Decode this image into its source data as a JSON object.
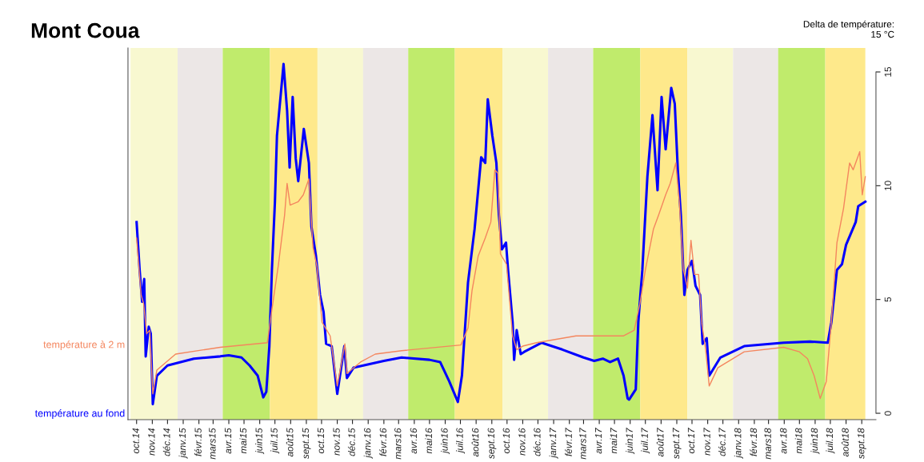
{
  "chart_data": {
    "type": "line",
    "title": "Mont Coua",
    "annotations": [
      "Delta de température:\n15 °C"
    ],
    "series": [
      {
        "name": "température à 2 m",
        "color": "#f4865e",
        "x": [
          "2014-10-01",
          "2014-10-10",
          "2014-10-15",
          "2014-10-21",
          "2014-10-27",
          "2014-11-02",
          "2014-11-10",
          "2014-12-17",
          "2015-03-15",
          "2015-06-16",
          "2015-06-25",
          "2015-07-08",
          "2015-07-20",
          "2015-07-25",
          "2015-07-31",
          "2015-08-16",
          "2015-08-26",
          "2015-09-06",
          "2015-09-14",
          "2015-09-22",
          "2015-10-02",
          "2015-10-18",
          "2015-11-01",
          "2015-11-16",
          "2015-11-20",
          "2015-12-17",
          "2016-01-15",
          "2016-03-07",
          "2016-07-02",
          "2016-07-16",
          "2016-07-24",
          "2016-08-05",
          "2016-08-19",
          "2016-08-30",
          "2016-09-07",
          "2016-09-13",
          "2016-09-18",
          "2016-09-30",
          "2016-10-12",
          "2016-10-20",
          "2016-11-01",
          "2016-11-28",
          "2017-02-14",
          "2017-05-19",
          "2017-06-09",
          "2017-06-20",
          "2017-07-01",
          "2017-07-17",
          "2017-07-27",
          "2017-08-10",
          "2017-08-19",
          "2017-08-30",
          "2017-09-06",
          "2017-09-14",
          "2017-09-22",
          "2017-09-29",
          "2017-10-06",
          "2017-10-14",
          "2017-10-20",
          "2017-10-28",
          "2017-11-04",
          "2017-11-21",
          "2018-01-12",
          "2018-03-31",
          "2018-05-01",
          "2018-05-17",
          "2018-05-30",
          "2018-06-11",
          "2018-06-23",
          "2018-07-03",
          "2018-07-14",
          "2018-07-27",
          "2018-08-08",
          "2018-08-15",
          "2018-08-28",
          "2018-09-02",
          "2018-09-08"
        ],
        "values": [
          7.7,
          5.2,
          4.8,
          3.5,
          3.65,
          0.85,
          1.9,
          2.6,
          2.9,
          3.1,
          4.55,
          6.55,
          8.7,
          10.1,
          9.15,
          9.3,
          9.6,
          10.3,
          7.3,
          6.45,
          4.0,
          3.4,
          1.2,
          3.05,
          1.75,
          2.25,
          2.6,
          2.75,
          3.0,
          3.75,
          5.4,
          6.9,
          7.7,
          8.4,
          10.7,
          10.55,
          7.0,
          6.55,
          3.4,
          2.8,
          2.95,
          3.1,
          3.4,
          3.4,
          3.65,
          4.8,
          6.3,
          8.1,
          8.7,
          9.6,
          10.1,
          11.0,
          9.3,
          6.3,
          5.5,
          7.6,
          6.1,
          6.1,
          4.0,
          2.8,
          1.2,
          2.0,
          2.7,
          2.9,
          2.7,
          2.4,
          1.65,
          0.65,
          1.4,
          4.0,
          7.5,
          9.0,
          11.0,
          10.7,
          11.5,
          9.6,
          10.4
        ]
      },
      {
        "name": "température au fond",
        "color": "#0000ff",
        "x": [
          "2014-10-01",
          "2014-10-07",
          "2014-10-12",
          "2014-10-16",
          "2014-10-19",
          "2014-10-25",
          "2014-10-29",
          "2014-11-02",
          "2014-11-10",
          "2014-12-01",
          "2015-01-22",
          "2015-03-15",
          "2015-04-01",
          "2015-04-26",
          "2015-05-12",
          "2015-05-28",
          "2015-06-08",
          "2015-06-14",
          "2015-06-20",
          "2015-06-25",
          "2015-07-01",
          "2015-07-05",
          "2015-07-18",
          "2015-07-25",
          "2015-07-30",
          "2015-08-05",
          "2015-08-11",
          "2015-08-16",
          "2015-08-27",
          "2015-09-06",
          "2015-09-11",
          "2015-09-20",
          "2015-09-28",
          "2015-10-05",
          "2015-10-10",
          "2015-10-21",
          "2015-11-01",
          "2015-11-15",
          "2015-11-20",
          "2015-12-03",
          "2016-02-01",
          "2016-03-07",
          "2016-05-01",
          "2016-05-22",
          "2016-06-09",
          "2016-06-26",
          "2016-07-04",
          "2016-07-16",
          "2016-07-29",
          "2016-08-11",
          "2016-08-19",
          "2016-08-24",
          "2016-09-02",
          "2016-09-10",
          "2016-09-15",
          "2016-09-21",
          "2016-09-29",
          "2016-10-03",
          "2016-10-12",
          "2016-10-15",
          "2016-10-20",
          "2016-10-28",
          "2016-11-04",
          "2016-12-08",
          "2017-01-18",
          "2017-03-01",
          "2017-03-22",
          "2017-04-08",
          "2017-04-22",
          "2017-05-08",
          "2017-05-19",
          "2017-05-27",
          "2017-05-30",
          "2017-06-12",
          "2017-06-17",
          "2017-06-25",
          "2017-07-05",
          "2017-07-15",
          "2017-07-25",
          "2017-08-02",
          "2017-08-10",
          "2017-08-21",
          "2017-08-28",
          "2017-09-03",
          "2017-09-09",
          "2017-09-16",
          "2017-09-22",
          "2017-10-01",
          "2017-10-08",
          "2017-10-17",
          "2017-10-22",
          "2017-10-30",
          "2017-11-04",
          "2017-11-26",
          "2018-01-12",
          "2018-03-31",
          "2018-05-22",
          "2018-06-26",
          "2018-07-03",
          "2018-07-14",
          "2018-07-24",
          "2018-08-01",
          "2018-08-20",
          "2018-08-25",
          "2018-09-08"
        ],
        "values": [
          8.4,
          6.3,
          4.9,
          5.9,
          2.5,
          3.8,
          3.5,
          0.4,
          1.65,
          2.1,
          2.4,
          2.5,
          2.55,
          2.45,
          2.1,
          1.65,
          0.7,
          0.95,
          2.95,
          6.3,
          9.3,
          12.2,
          15.35,
          13.3,
          10.8,
          13.9,
          11.2,
          10.2,
          12.5,
          11.0,
          8.2,
          6.9,
          5.2,
          4.45,
          3.05,
          2.95,
          0.85,
          2.95,
          1.55,
          2.0,
          2.3,
          2.45,
          2.35,
          2.25,
          1.4,
          0.5,
          1.65,
          5.75,
          8.1,
          11.25,
          11.0,
          13.8,
          12.2,
          11.0,
          8.7,
          7.2,
          7.5,
          6.3,
          4.0,
          2.35,
          3.65,
          2.6,
          2.7,
          3.1,
          2.8,
          2.45,
          2.3,
          2.4,
          2.25,
          2.4,
          1.65,
          0.65,
          0.6,
          1.05,
          4.0,
          6.3,
          10.4,
          13.1,
          9.8,
          13.9,
          11.6,
          14.3,
          13.6,
          10.7,
          8.7,
          5.2,
          6.3,
          6.7,
          5.6,
          5.2,
          3.05,
          3.3,
          1.65,
          2.45,
          2.95,
          3.1,
          3.15,
          3.1,
          4.0,
          6.3,
          6.55,
          7.4,
          8.4,
          9.1,
          9.3
        ]
      }
    ],
    "bands": [
      {
        "axis": "x",
        "from": "2014-09-19",
        "to": "2014-12-21",
        "color": "#f8f8d0"
      },
      {
        "axis": "x",
        "from": "2014-12-21",
        "to": "2015-03-20",
        "color": "#ece7e6"
      },
      {
        "axis": "x",
        "from": "2015-03-20",
        "to": "2015-06-21",
        "color": "#c0eb6c"
      },
      {
        "axis": "x",
        "from": "2015-06-21",
        "to": "2015-09-23",
        "color": "#fee98b"
      },
      {
        "axis": "x",
        "from": "2015-09-23",
        "to": "2015-12-22",
        "color": "#f8f8d0"
      },
      {
        "axis": "x",
        "from": "2015-12-22",
        "to": "2016-03-20",
        "color": "#ece7e6"
      },
      {
        "axis": "x",
        "from": "2016-03-20",
        "to": "2016-06-20",
        "color": "#c0eb6c"
      },
      {
        "axis": "x",
        "from": "2016-06-20",
        "to": "2016-09-22",
        "color": "#fee98b"
      },
      {
        "axis": "x",
        "from": "2016-09-22",
        "to": "2016-12-21",
        "color": "#f8f8d0"
      },
      {
        "axis": "x",
        "from": "2016-12-21",
        "to": "2017-03-20",
        "color": "#ece7e6"
      },
      {
        "axis": "x",
        "from": "2017-03-20",
        "to": "2017-06-21",
        "color": "#c0eb6c"
      },
      {
        "axis": "x",
        "from": "2017-06-21",
        "to": "2017-09-22",
        "color": "#fee98b"
      },
      {
        "axis": "x",
        "from": "2017-09-22",
        "to": "2017-12-21",
        "color": "#f8f8d0"
      },
      {
        "axis": "x",
        "from": "2017-12-21",
        "to": "2018-03-20",
        "color": "#ece7e6"
      },
      {
        "axis": "x",
        "from": "2018-03-20",
        "to": "2018-06-21",
        "color": "#c0eb6c"
      },
      {
        "axis": "x",
        "from": "2018-06-21",
        "to": "2018-09-08",
        "color": "#fee98b"
      }
    ],
    "xlim": [
      "2014-09-14",
      "2018-09-29"
    ],
    "xticks": [
      {
        "value": "2014-10-01",
        "label": "oct.14"
      },
      {
        "value": "2014-11-01",
        "label": "nov.14"
      },
      {
        "value": "2014-12-01",
        "label": "déc.14"
      },
      {
        "value": "2015-01-01",
        "label": "janv.15"
      },
      {
        "value": "2015-02-01",
        "label": "févr.15"
      },
      {
        "value": "2015-03-01",
        "label": "mars15"
      },
      {
        "value": "2015-04-01",
        "label": "avr.15"
      },
      {
        "value": "2015-05-01",
        "label": "mai15"
      },
      {
        "value": "2015-06-01",
        "label": "juin15"
      },
      {
        "value": "2015-07-01",
        "label": "juil.15"
      },
      {
        "value": "2015-08-01",
        "label": "août15"
      },
      {
        "value": "2015-09-01",
        "label": "sept.15"
      },
      {
        "value": "2015-10-01",
        "label": "oct.15"
      },
      {
        "value": "2015-11-01",
        "label": "nov.15"
      },
      {
        "value": "2015-12-01",
        "label": "déc.15"
      },
      {
        "value": "2016-01-01",
        "label": "janv.16"
      },
      {
        "value": "2016-02-01",
        "label": "févr.16"
      },
      {
        "value": "2016-03-01",
        "label": "mars16"
      },
      {
        "value": "2016-04-01",
        "label": "avr.16"
      },
      {
        "value": "2016-05-01",
        "label": "mai16"
      },
      {
        "value": "2016-06-01",
        "label": "juin16"
      },
      {
        "value": "2016-07-01",
        "label": "juil.16"
      },
      {
        "value": "2016-08-01",
        "label": "août16"
      },
      {
        "value": "2016-09-01",
        "label": "sept.16"
      },
      {
        "value": "2016-10-01",
        "label": "oct.16"
      },
      {
        "value": "2016-11-01",
        "label": "nov.16"
      },
      {
        "value": "2016-12-01",
        "label": "déc.16"
      },
      {
        "value": "2017-01-01",
        "label": "janv.17"
      },
      {
        "value": "2017-02-01",
        "label": "févr.17"
      },
      {
        "value": "2017-03-01",
        "label": "mars17"
      },
      {
        "value": "2017-04-01",
        "label": "avr.17"
      },
      {
        "value": "2017-05-01",
        "label": "mai17"
      },
      {
        "value": "2017-06-01",
        "label": "juin17"
      },
      {
        "value": "2017-07-01",
        "label": "juil.17"
      },
      {
        "value": "2017-08-01",
        "label": "août17"
      },
      {
        "value": "2017-09-01",
        "label": "sept.17"
      },
      {
        "value": "2017-10-01",
        "label": "oct.17"
      },
      {
        "value": "2017-11-01",
        "label": "nov.17"
      },
      {
        "value": "2017-12-01",
        "label": "déc.17"
      },
      {
        "value": "2018-01-01",
        "label": "janv.18"
      },
      {
        "value": "2018-02-01",
        "label": "févr.18"
      },
      {
        "value": "2018-03-01",
        "label": "mars18"
      },
      {
        "value": "2018-04-01",
        "label": "avr.18"
      },
      {
        "value": "2018-05-01",
        "label": "mai18"
      },
      {
        "value": "2018-06-01",
        "label": "juin18"
      },
      {
        "value": "2018-07-01",
        "label": "juil.18"
      },
      {
        "value": "2018-08-01",
        "label": "août18"
      },
      {
        "value": "2018-09-01",
        "label": "sept.18"
      }
    ],
    "ylim": [
      -0.28,
      16.05
    ],
    "yticks": [
      0,
      5,
      10,
      15
    ],
    "grid": false,
    "legend": false,
    "line_style": "solid",
    "marker": "none"
  }
}
